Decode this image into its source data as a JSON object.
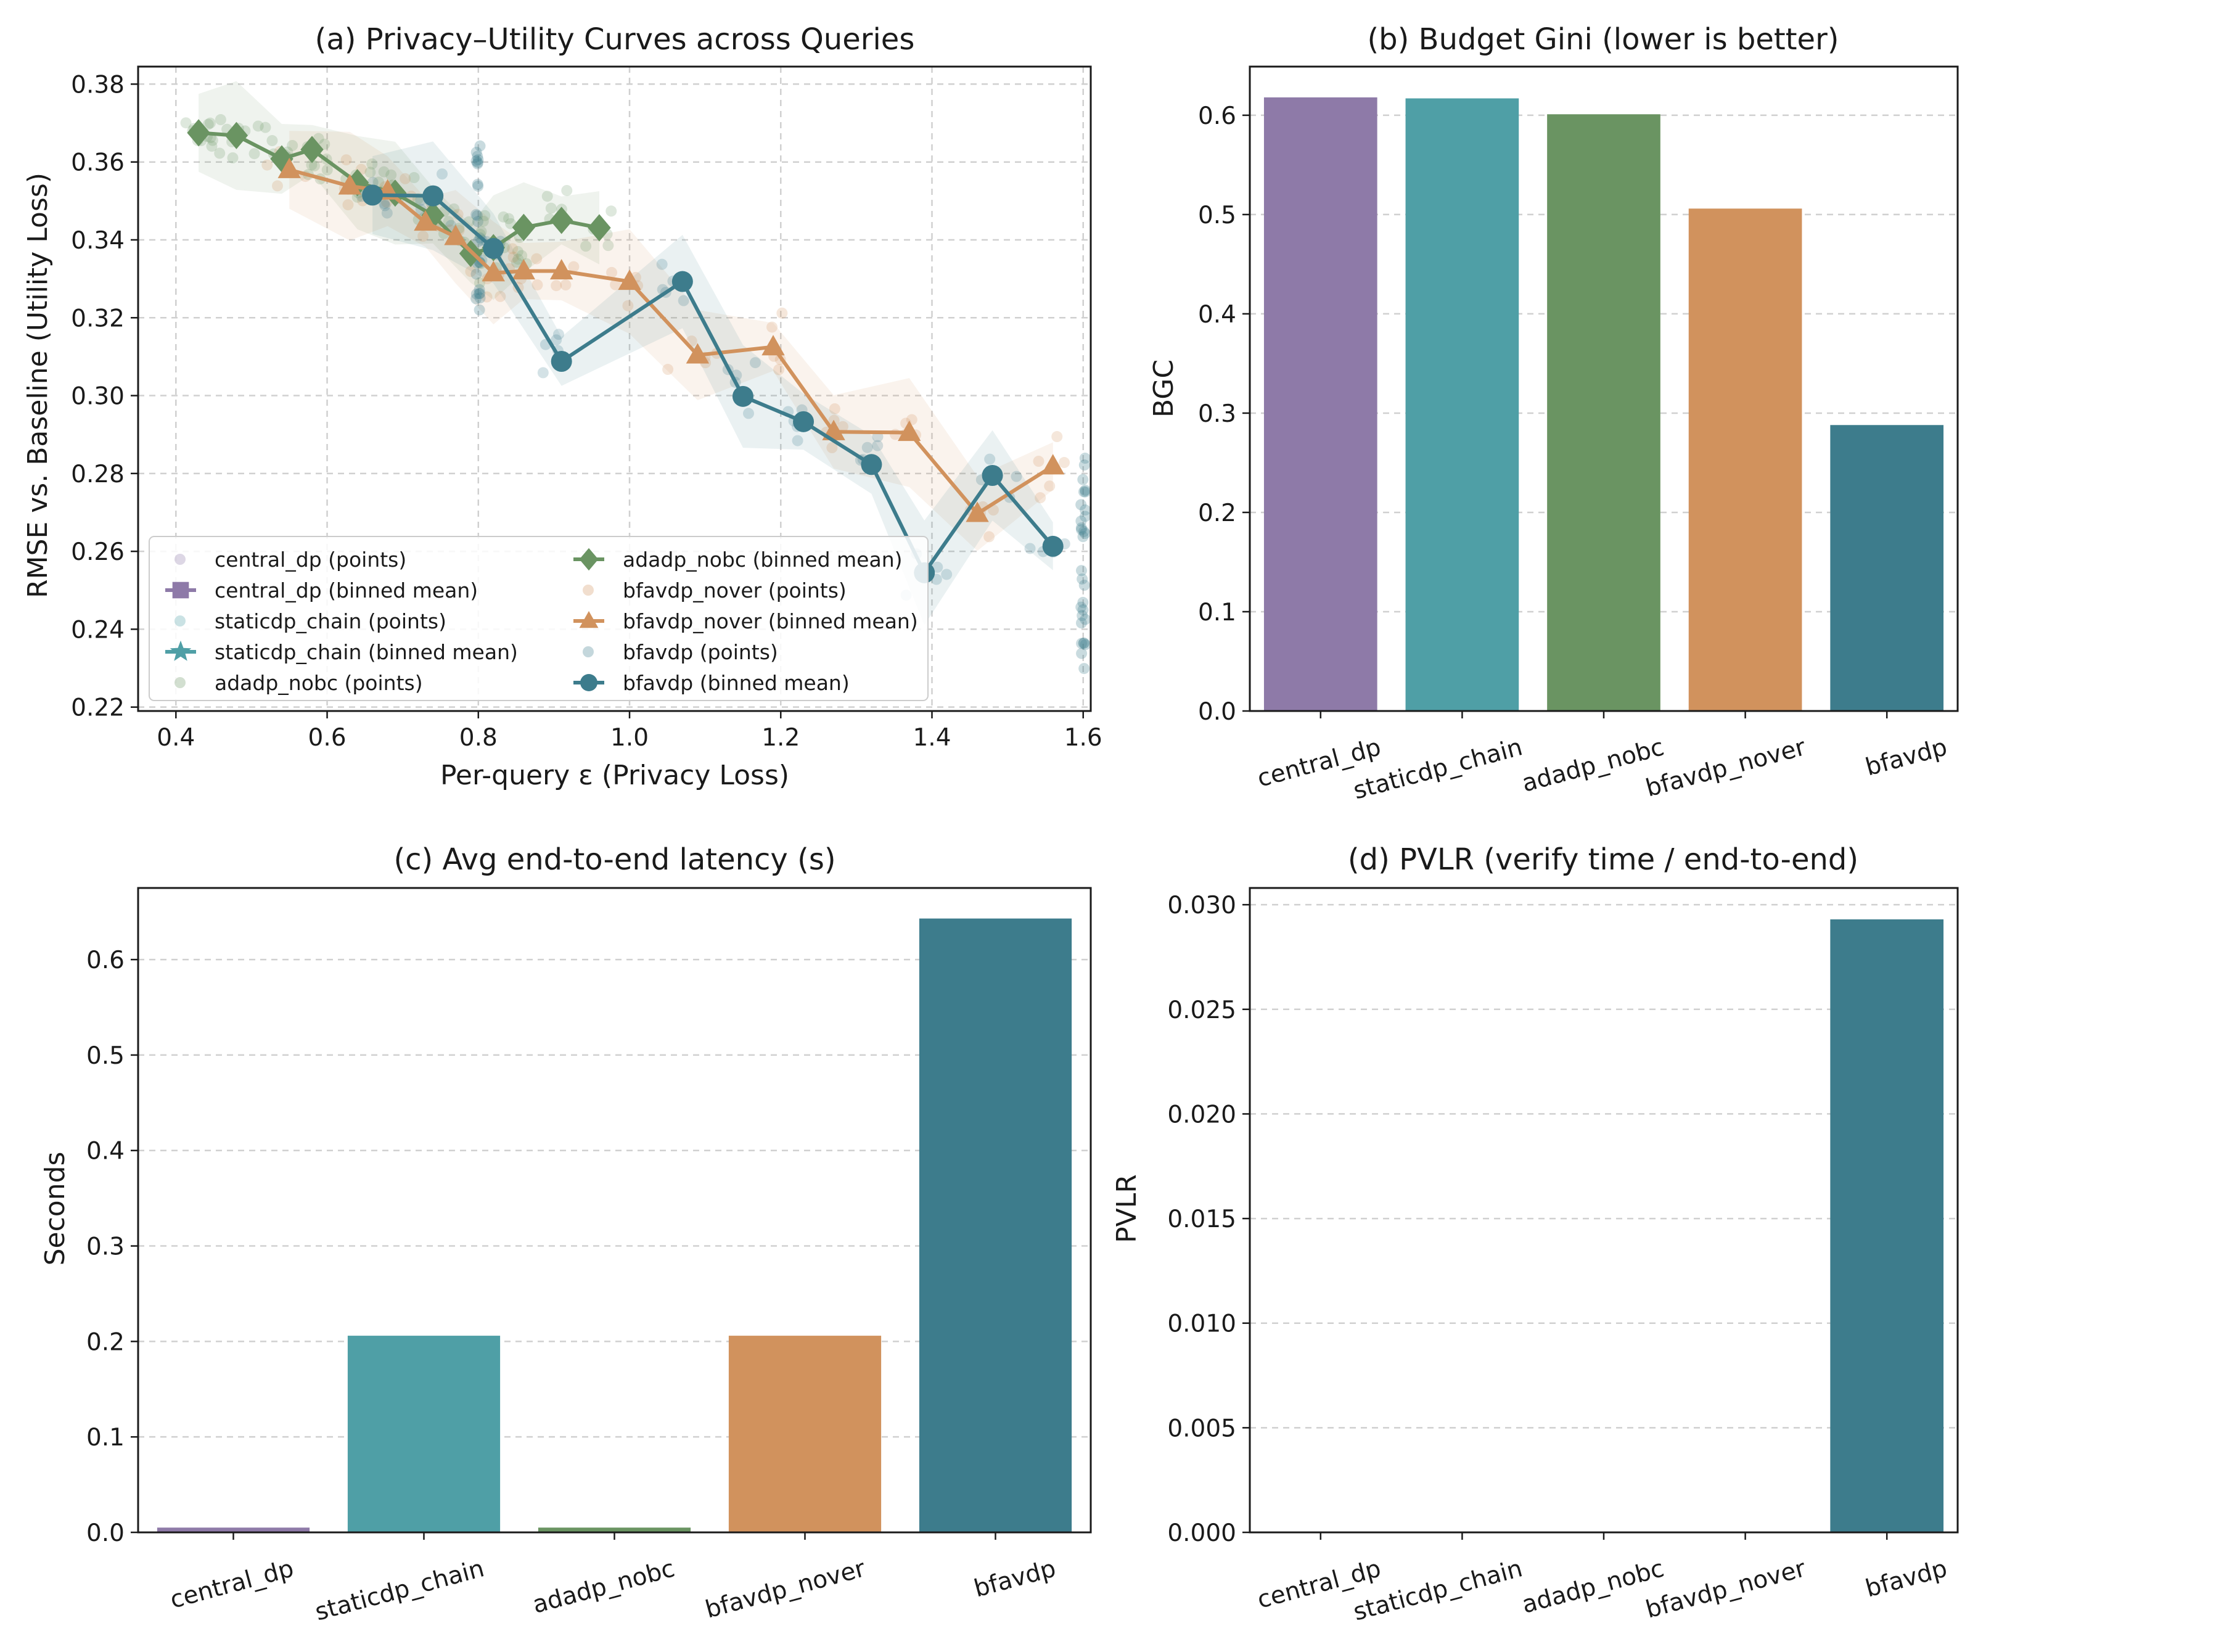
{
  "colors": {
    "central_dp": "#8e7aa8",
    "staticdp_chain": "#4f9fa6",
    "adadp_nobc": "#6a9462",
    "bfavdp_nover": "#d1925d",
    "bfavdp": "#3d7c8c",
    "grid": "#d0d0d0",
    "axis": "#1a1a1a"
  },
  "chart_data": [
    {
      "id": "a",
      "type": "line",
      "title": "(a) Privacy–Utility Curves across Queries",
      "xlabel": "Per-query ε (Privacy Loss)",
      "ylabel": "RMSE vs. Baseline (Utility Loss)",
      "xlim": [
        0.35,
        1.61
      ],
      "ylim": [
        0.219,
        0.3845
      ],
      "xticks": [
        0.4,
        0.6,
        0.8,
        1.0,
        1.2,
        1.4,
        1.6
      ],
      "xtick_labels": [
        "0.4",
        "0.6",
        "0.8",
        "1.0",
        "1.2",
        "1.4",
        "1.6"
      ],
      "yticks": [
        0.22,
        0.24,
        0.26,
        0.28,
        0.3,
        0.32,
        0.34,
        0.36,
        0.38
      ],
      "ytick_labels": [
        "0.22",
        "0.24",
        "0.26",
        "0.28",
        "0.30",
        "0.32",
        "0.34",
        "0.36",
        "0.38"
      ],
      "grid": true,
      "legend_position": "lower-left",
      "legend": [
        {
          "label": "central_dp (points)",
          "series": "central_dp",
          "kind": "points"
        },
        {
          "label": "central_dp (binned mean)",
          "series": "central_dp",
          "kind": "mean",
          "marker": "square"
        },
        {
          "label": "staticdp_chain (points)",
          "series": "staticdp_chain",
          "kind": "points"
        },
        {
          "label": "staticdp_chain (binned mean)",
          "series": "staticdp_chain",
          "kind": "mean",
          "marker": "star"
        },
        {
          "label": "adadp_nobc (points)",
          "series": "adadp_nobc",
          "kind": "points"
        },
        {
          "label": "adadp_nobc (binned mean)",
          "series": "adadp_nobc",
          "kind": "mean",
          "marker": "diamond"
        },
        {
          "label": "bfavdp_nover (points)",
          "series": "bfavdp_nover",
          "kind": "points"
        },
        {
          "label": "bfavdp_nover (binned mean)",
          "series": "bfavdp_nover",
          "kind": "mean",
          "marker": "triangle"
        },
        {
          "label": "bfavdp (points)",
          "series": "bfavdp",
          "kind": "points"
        },
        {
          "label": "bfavdp (binned mean)",
          "series": "bfavdp",
          "kind": "mean",
          "marker": "circle"
        }
      ],
      "series": [
        {
          "name": "adadp_nobc",
          "marker": "diamond",
          "x": [
            0.43,
            0.48,
            0.54,
            0.58,
            0.64,
            0.69,
            0.74,
            0.79,
            0.82,
            0.86,
            0.91,
            0.96
          ],
          "y": [
            0.3675,
            0.3668,
            0.3608,
            0.3632,
            0.3547,
            0.352,
            0.3463,
            0.3365,
            0.338,
            0.3432,
            0.345,
            0.3431
          ]
        },
        {
          "name": "bfavdp_nover",
          "marker": "triangle",
          "x": [
            0.55,
            0.63,
            0.68,
            0.73,
            0.77,
            0.82,
            0.86,
            0.91,
            1.0,
            1.09,
            1.19,
            1.27,
            1.37,
            1.46,
            1.56
          ],
          "y": [
            0.358,
            0.3538,
            0.3525,
            0.3445,
            0.3408,
            0.3315,
            0.332,
            0.332,
            0.3293,
            0.3104,
            0.3125,
            0.2907,
            0.2905,
            0.2697,
            0.2819
          ]
        },
        {
          "name": "bfavdp",
          "marker": "circle",
          "x": [
            0.66,
            0.74,
            0.82,
            0.91,
            1.07,
            1.15,
            1.23,
            1.32,
            1.39,
            1.48,
            1.56
          ],
          "y": [
            0.3515,
            0.3513,
            0.3378,
            0.3088,
            0.3293,
            0.2998,
            0.2933,
            0.2823,
            0.2545,
            0.2795,
            0.2613
          ]
        }
      ]
    },
    {
      "id": "b",
      "type": "bar",
      "title": "(b) Budget Gini (lower is better)",
      "xlabel": "",
      "ylabel": "BGC",
      "categories": [
        "central_dp",
        "staticdp_chain",
        "adadp_nobc",
        "bfavdp_nover",
        "bfavdp"
      ],
      "values": [
        0.618,
        0.617,
        0.601,
        0.506,
        0.288
      ],
      "ylim": [
        0,
        0.649
      ],
      "yticks": [
        0.0,
        0.1,
        0.2,
        0.3,
        0.4,
        0.5,
        0.6
      ],
      "ytick_labels": [
        "0.0",
        "0.1",
        "0.2",
        "0.3",
        "0.4",
        "0.5",
        "0.6"
      ],
      "grid": true
    },
    {
      "id": "c",
      "type": "bar",
      "title": "(c) Avg end-to-end latency (s)",
      "xlabel": "",
      "ylabel": "Seconds",
      "categories": [
        "central_dp",
        "staticdp_chain",
        "adadp_nobc",
        "bfavdp_nover",
        "bfavdp"
      ],
      "values": [
        0.005,
        0.206,
        0.005,
        0.206,
        0.643
      ],
      "ylim": [
        0,
        0.675
      ],
      "yticks": [
        0.0,
        0.1,
        0.2,
        0.3,
        0.4,
        0.5,
        0.6
      ],
      "ytick_labels": [
        "0.0",
        "0.1",
        "0.2",
        "0.3",
        "0.4",
        "0.5",
        "0.6"
      ],
      "grid": true
    },
    {
      "id": "d",
      "type": "bar",
      "title": "(d) PVLR (verify time / end-to-end)",
      "xlabel": "",
      "ylabel": "PVLR",
      "categories": [
        "central_dp",
        "staticdp_chain",
        "adadp_nobc",
        "bfavdp_nover",
        "bfavdp"
      ],
      "values": [
        0,
        0,
        0,
        0,
        0.0293
      ],
      "ylim": [
        0,
        0.0308
      ],
      "yticks": [
        0.0,
        0.005,
        0.01,
        0.015,
        0.02,
        0.025,
        0.03
      ],
      "ytick_labels": [
        "0.000",
        "0.005",
        "0.010",
        "0.015",
        "0.020",
        "0.025",
        "0.030"
      ],
      "grid": true
    }
  ]
}
